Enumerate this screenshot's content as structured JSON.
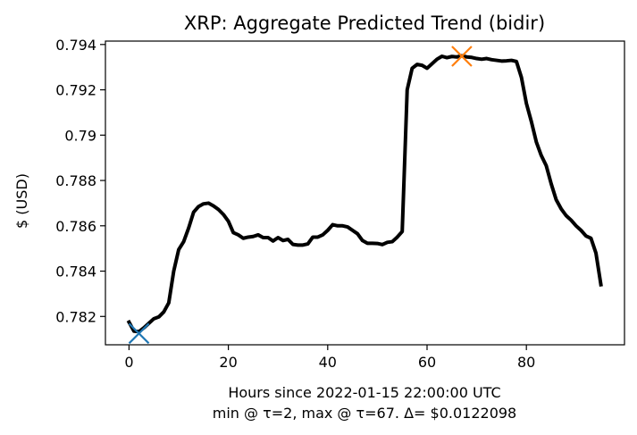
{
  "chart_data": {
    "type": "line",
    "title": "XRP: Aggregate Predicted Trend (bidir)",
    "xlabel": "Hours since 2022-01-15 22:00:00 UTC",
    "xlabel2": "min @ τ=2, max @ τ=67. Δ= $0.0122098",
    "ylabel": "$ (USD)",
    "xlim": [
      -4.75,
      99.75
    ],
    "ylim": [
      0.78075,
      0.79415
    ],
    "xticks": [
      0,
      20,
      40,
      60,
      80
    ],
    "xtick_labels": [
      "0",
      "20",
      "40",
      "60",
      "80"
    ],
    "yticks": [
      0.782,
      0.784,
      0.786,
      0.788,
      0.79,
      0.792,
      0.794
    ],
    "ytick_labels": [
      "0.782",
      "0.784",
      "0.786",
      "0.788",
      "0.79",
      "0.792",
      "0.794"
    ],
    "grid": false,
    "series": [
      {
        "color": "#000000",
        "x": [
          0,
          1,
          2,
          3,
          4,
          5,
          6,
          7,
          8,
          9,
          10,
          11,
          12,
          13,
          14,
          15,
          16,
          17,
          18,
          19,
          20,
          21,
          22,
          23,
          24,
          25,
          26,
          27,
          28,
          29,
          30,
          31,
          32,
          33,
          34,
          35,
          36,
          37,
          38,
          39,
          40,
          41,
          42,
          43,
          44,
          45,
          46,
          47,
          48,
          49,
          50,
          51,
          52,
          53,
          54,
          55,
          56,
          57,
          58,
          59,
          60,
          61,
          62,
          63,
          64,
          65,
          66,
          67,
          68,
          69,
          70,
          71,
          72,
          73,
          74,
          75,
          76,
          77,
          78,
          79,
          80,
          81,
          82,
          83,
          84,
          85,
          86,
          87,
          88,
          89,
          90,
          91,
          92,
          93,
          94,
          95
        ],
        "y": [
          0.78175,
          0.78135,
          0.78133,
          0.7815,
          0.7817,
          0.7819,
          0.78198,
          0.7822,
          0.7826,
          0.784,
          0.78495,
          0.7853,
          0.7859,
          0.7866,
          0.78685,
          0.78697,
          0.787,
          0.78688,
          0.78672,
          0.7865,
          0.7862,
          0.7857,
          0.7856,
          0.78545,
          0.7855,
          0.78553,
          0.7856,
          0.78548,
          0.78548,
          0.78533,
          0.78548,
          0.78535,
          0.7854,
          0.78518,
          0.78515,
          0.78515,
          0.7852,
          0.7855,
          0.7855,
          0.7856,
          0.7858,
          0.78605,
          0.786,
          0.786,
          0.78595,
          0.7858,
          0.78565,
          0.78535,
          0.78523,
          0.78523,
          0.78522,
          0.78517,
          0.78527,
          0.7853,
          0.7855,
          0.78575,
          0.792,
          0.79295,
          0.79312,
          0.79308,
          0.79295,
          0.79315,
          0.79335,
          0.79348,
          0.79342,
          0.79347,
          0.79345,
          0.7935,
          0.79345,
          0.79343,
          0.79338,
          0.79335,
          0.79338,
          0.79333,
          0.7933,
          0.79327,
          0.79328,
          0.7933,
          0.79325,
          0.79255,
          0.7914,
          0.7906,
          0.7897,
          0.7891,
          0.78865,
          0.78785,
          0.78715,
          0.78675,
          0.78645,
          0.78625,
          0.786,
          0.7858,
          0.78555,
          0.78545,
          0.7848,
          0.7834
        ],
        "line_width": 4
      }
    ],
    "markers": [
      {
        "label": "min",
        "x": 2,
        "y": 0.78125,
        "color": "#1f77b4",
        "symbol": "x"
      },
      {
        "label": "max",
        "x": 67,
        "y": 0.79348,
        "color": "#ff7f0e",
        "symbol": "x"
      }
    ]
  }
}
